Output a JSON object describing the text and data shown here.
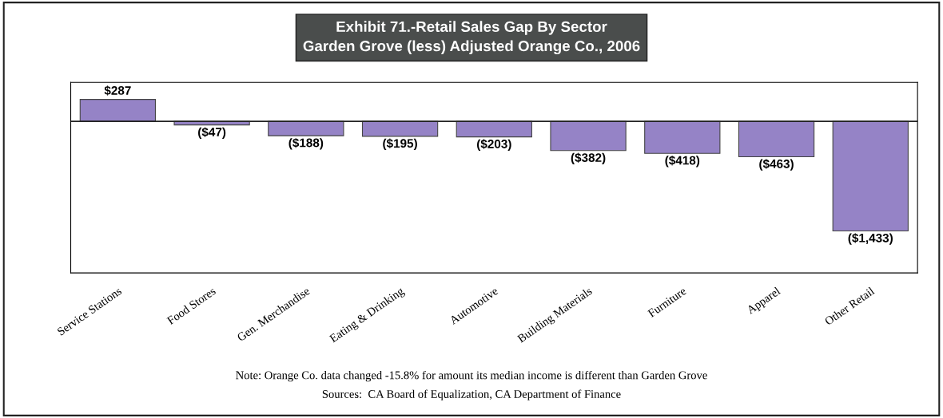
{
  "chart_data": {
    "type": "bar",
    "title": "Exhibit 71.-Retail Sales Gap By Sector\nGarden Grove (less) Adjusted Orange Co., 2006",
    "categories": [
      "Service Stations",
      "Food Stores",
      "Gen. Merchandise",
      "Eating & Drinking",
      "Automotive",
      "Building Materials",
      "Furniture",
      "Apparel",
      "Other Retail"
    ],
    "values": [
      287,
      -47,
      -188,
      -195,
      -203,
      -382,
      -418,
      -463,
      -1433
    ],
    "value_labels": [
      "$287",
      "($47)",
      "($188)",
      "($195)",
      "($203)",
      "($382)",
      "($418)",
      "($463)",
      "($1,433)"
    ],
    "color": "#9583c6",
    "grid": false,
    "legend": false,
    "tick_labels": "x",
    "annotations": [
      "Note: Orange Co. data changed -15.8% for amount its median income is different than Garden Grove",
      "Sources:  CA Board of Equalization, CA Department of Finance"
    ]
  }
}
